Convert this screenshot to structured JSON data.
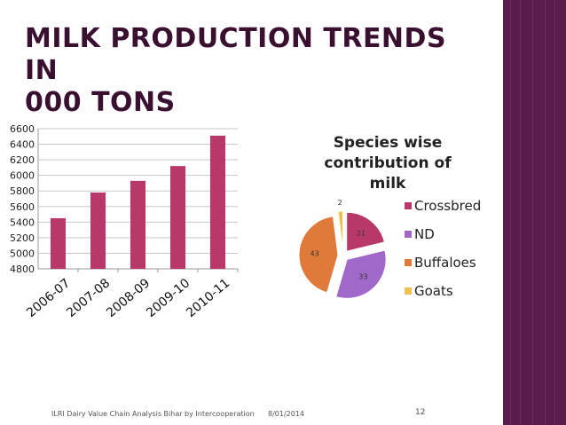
{
  "slide": {
    "title_line1": "MILK  PRODUCTION TRENDS IN",
    "title_line2": "000 TONS",
    "footer_source": "ILRI Dairy Value Chain Analysis Bihar by Intercooperation",
    "footer_date": "8/01/2014",
    "page_number": "12",
    "accent_band_color": "#5a1c4c",
    "title_color": "#3a1030"
  },
  "chart_data": [
    {
      "type": "bar",
      "categories": [
        "2006-07",
        "2007-08",
        "2008-09",
        "2009-10",
        "2010-11"
      ],
      "values": [
        5450,
        5780,
        5930,
        6120,
        6510
      ],
      "ylim": [
        4800,
        6600
      ],
      "yticks": [
        4800,
        5000,
        5200,
        5400,
        5600,
        5800,
        6000,
        6200,
        6400,
        6600
      ],
      "title": "",
      "xlabel": "",
      "ylabel": "",
      "grid": true,
      "color": "#b8386a"
    },
    {
      "type": "pie",
      "title_lines": [
        "Species wise",
        "contribution of",
        "milk"
      ],
      "labels": [
        "Crossbred",
        "ND",
        "Buffaloes",
        "Goats"
      ],
      "values": [
        21,
        33,
        43,
        2
      ],
      "colors": [
        "#b8386a",
        "#a068c8",
        "#e07a3a",
        "#f0c050"
      ],
      "legend_position": "right"
    }
  ]
}
